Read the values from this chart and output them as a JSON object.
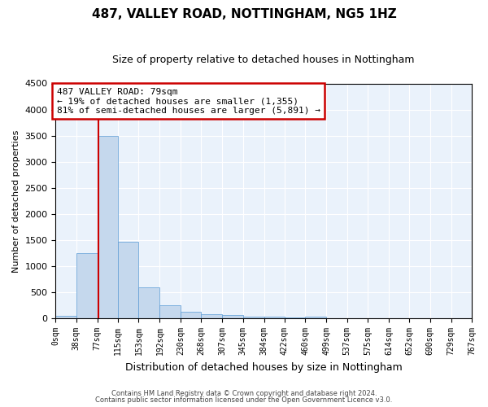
{
  "title1": "487, VALLEY ROAD, NOTTINGHAM, NG5 1HZ",
  "title2": "Size of property relative to detached houses in Nottingham",
  "xlabel": "Distribution of detached houses by size in Nottingham",
  "ylabel": "Number of detached properties",
  "footer1": "Contains HM Land Registry data © Crown copyright and database right 2024.",
  "footer2": "Contains public sector information licensed under the Open Government Licence v3.0.",
  "property_size": 79,
  "annotation_line1": "487 VALLEY ROAD: 79sqm",
  "annotation_line2": "← 19% of detached houses are smaller (1,355)",
  "annotation_line3": "81% of semi-detached houses are larger (5,891) →",
  "bar_color": "#c5d8ed",
  "bar_edge_color": "#5b9bd5",
  "vline_color": "#cc0000",
  "ylim": [
    0,
    4500
  ],
  "bin_edges": [
    0,
    38,
    77,
    115,
    153,
    192,
    230,
    268,
    307,
    345,
    384,
    422,
    460,
    499,
    537,
    575,
    614,
    652,
    690,
    729,
    767
  ],
  "bar_heights": [
    50,
    1250,
    3500,
    1475,
    600,
    260,
    120,
    85,
    60,
    40,
    30,
    20,
    40,
    0,
    0,
    0,
    0,
    0,
    0,
    0
  ],
  "bg_color": "#eaf2fb",
  "tick_labels": [
    "0sqm",
    "38sqm",
    "77sqm",
    "115sqm",
    "153sqm",
    "192sqm",
    "230sqm",
    "268sqm",
    "307sqm",
    "345sqm",
    "384sqm",
    "422sqm",
    "460sqm",
    "499sqm",
    "537sqm",
    "575sqm",
    "614sqm",
    "652sqm",
    "690sqm",
    "729sqm",
    "767sqm"
  ],
  "title1_fontsize": 11,
  "title2_fontsize": 9,
  "ylabel_fontsize": 8,
  "xlabel_fontsize": 9,
  "ytick_fontsize": 8,
  "xtick_fontsize": 7
}
